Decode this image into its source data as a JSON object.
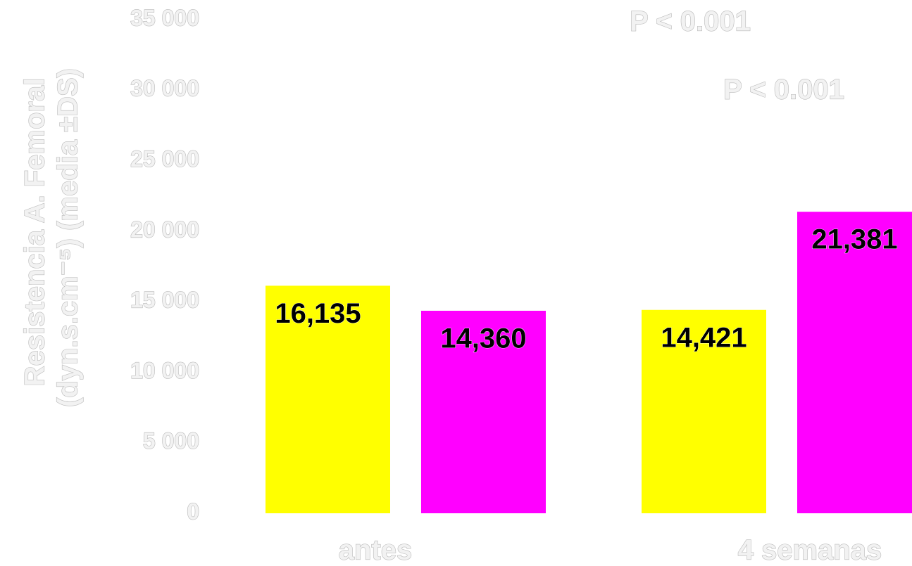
{
  "chart_data": {
    "type": "bar",
    "y_label": [
      "Resistencia A. Femoral",
      "(dyn.s.cm⁻⁵) (media ±DS)"
    ],
    "annotations": [
      "P < 0.001",
      "P < 0.001"
    ],
    "categories": [
      "antes",
      "4 semanas"
    ],
    "series": [
      {
        "color": "#ffff00",
        "values": [
          16135,
          14421
        ],
        "value_labels": [
          "16,135",
          "14,421"
        ]
      },
      {
        "color": "#ff00ff",
        "values": [
          14360,
          21381
        ],
        "value_labels": [
          "14,360",
          "21,381"
        ]
      }
    ],
    "ylim": [
      0,
      35000
    ],
    "yticks": [
      0,
      {
        "value": 5000,
        "label": "5 000"
      },
      {
        "value": 10000,
        "label": "10 000"
      },
      {
        "value": 15000,
        "label": "15 000"
      },
      {
        "value": 20000,
        "label": "20 000"
      },
      {
        "value": 25000,
        "label": "25 000"
      },
      {
        "value": 30000,
        "label": "30 000"
      },
      {
        "value": 35000,
        "label": "35 000"
      }
    ],
    "grid": false
  }
}
